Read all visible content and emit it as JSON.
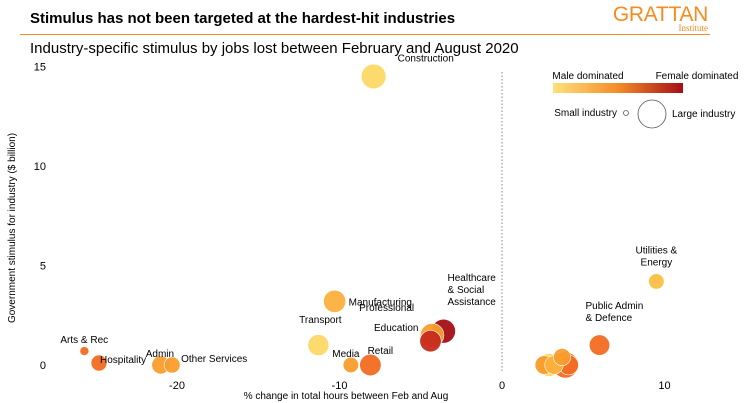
{
  "header": {
    "title": "Stimulus has not been targeted at the hardest-hit industries",
    "subtitle": "Industry-specific stimulus by jobs lost between February and August 2020"
  },
  "logo": {
    "name": "GRATTAN",
    "sub": "Institute"
  },
  "colors": {
    "accent": "#F68B1F",
    "male": "#FDD865",
    "mid": "#F26B21",
    "female": "#A50F15"
  },
  "legend": {
    "male_label": "Male dominated",
    "female_label": "Female dominated",
    "small_label": "Small industry",
    "large_label": "Large industry"
  },
  "chart_data": {
    "type": "scatter",
    "xlabel": "% change in total hours between Feb and Aug",
    "ylabel": "Government stimulus for industry ($ billion)",
    "xlim": [
      -26.5,
      11
    ],
    "ylim": [
      0,
      15
    ],
    "x_ticks": [
      "-20",
      "-10",
      "0",
      "10"
    ],
    "y_ticks": [
      "0",
      "5",
      "10",
      "15"
    ],
    "reference_line": {
      "x": 0,
      "style": "dotted"
    },
    "points": [
      {
        "label": "Construction",
        "x": -7.9,
        "y": 14.5,
        "size": 0.75,
        "color": "#FDD865"
      },
      {
        "label": "Manufacturing",
        "x": -10.3,
        "y": 3.2,
        "size": 0.65,
        "color": "#FBB03B"
      },
      {
        "label": "Transport",
        "x": -11.3,
        "y": 1.0,
        "size": 0.6,
        "color": "#FDD865"
      },
      {
        "label": "Media",
        "x": -9.3,
        "y": 0.0,
        "size": 0.38,
        "color": "#F89D2C"
      },
      {
        "label": "Retail",
        "x": -8.1,
        "y": 0.0,
        "size": 0.62,
        "color": "#F26B21"
      },
      {
        "label": "Professional",
        "x": -4.3,
        "y": 1.5,
        "size": 0.7,
        "color": "#F89D2C"
      },
      {
        "label": "Education",
        "x": -4.4,
        "y": 1.2,
        "size": 0.62,
        "color": "#C62A1B"
      },
      {
        "label": "Healthcare & Social Assistance",
        "x": -3.6,
        "y": 1.7,
        "size": 0.72,
        "color": "#A50F15"
      },
      {
        "label": "Arts & Rec",
        "x": -25.7,
        "y": 0.7,
        "size": 0.12,
        "color": "#F26B21"
      },
      {
        "label": "Hospitality",
        "x": -24.8,
        "y": 0.1,
        "size": 0.4,
        "color": "#F26B21"
      },
      {
        "label": "Admin",
        "x": -21.0,
        "y": 0.0,
        "size": 0.48,
        "color": "#F89D2C"
      },
      {
        "label": "Other Services",
        "x": -20.3,
        "y": 0.0,
        "size": 0.4,
        "color": "#F89D2C"
      },
      {
        "label": "Utilities & Energy",
        "x": 9.5,
        "y": 4.2,
        "size": 0.38,
        "color": "#FBC043"
      },
      {
        "label": "Public Admin & Defence",
        "x": 6.0,
        "y": 1.0,
        "size": 0.58,
        "color": "#F26B21"
      },
      {
        "label": "",
        "x": 2.6,
        "y": 0.0,
        "size": 0.5,
        "color": "#F89D2C"
      },
      {
        "label": "",
        "x": 2.9,
        "y": 0.0,
        "size": 0.68,
        "color": "#FDD865"
      },
      {
        "label": "",
        "x": 3.2,
        "y": 0.0,
        "size": 0.5,
        "color": "#FBB03B"
      },
      {
        "label": "",
        "x": 3.7,
        "y": 0.4,
        "size": 0.45,
        "color": "#F89D2C"
      },
      {
        "label": "",
        "x": 3.9,
        "y": 0.0,
        "size": 0.8,
        "color": "#F26B21"
      },
      {
        "label": "",
        "x": 4.1,
        "y": 0.0,
        "size": 0.55,
        "color": "#F26B21"
      }
    ]
  }
}
